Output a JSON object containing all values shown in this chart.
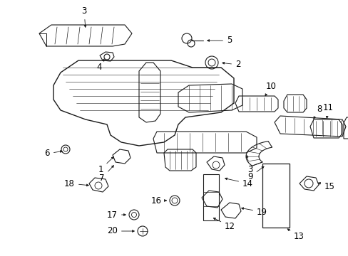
{
  "background_color": "#ffffff",
  "line_color": "#1a1a1a",
  "label_color": "#000000",
  "figsize": [
    4.89,
    3.6
  ],
  "dpi": 100,
  "label_fontsize": 8.5
}
